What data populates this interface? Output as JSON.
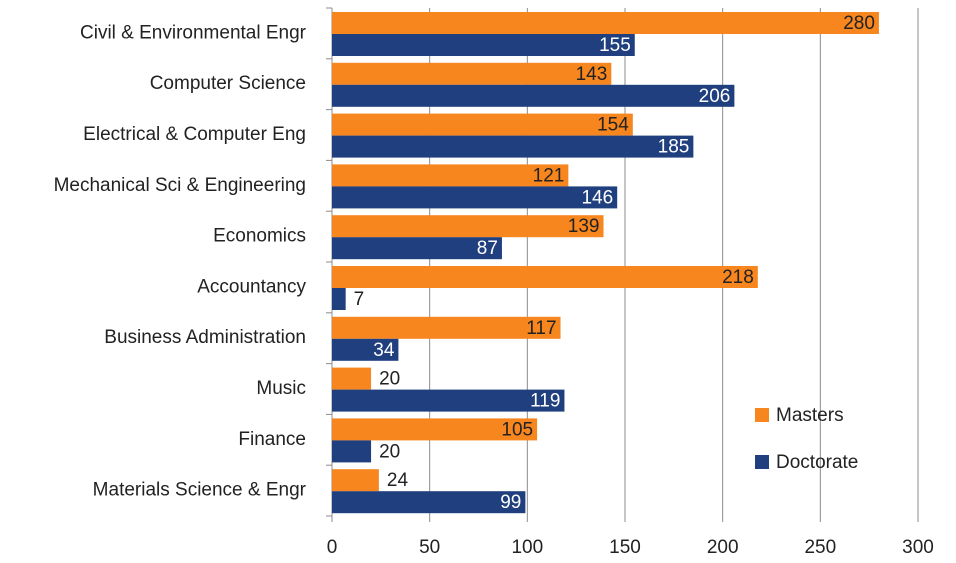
{
  "chart_data": {
    "type": "bar",
    "orientation": "horizontal",
    "categories": [
      "Civil & Environmental Engr",
      "Computer Science",
      "Electrical & Computer Eng",
      "Mechanical Sci & Engineering",
      "Economics",
      "Accountancy",
      "Business Administration",
      "Music",
      "Finance",
      "Materials Science & Engr"
    ],
    "series": [
      {
        "name": "Masters",
        "color": "#f7861f",
        "values": [
          280,
          143,
          154,
          121,
          139,
          218,
          117,
          20,
          105,
          24
        ]
      },
      {
        "name": "Doctorate",
        "color": "#203f7f",
        "values": [
          155,
          206,
          185,
          146,
          87,
          7,
          34,
          119,
          20,
          99
        ]
      }
    ],
    "xlim": [
      0,
      300
    ],
    "xticks": [
      0,
      50,
      100,
      150,
      200,
      250,
      300
    ],
    "grid": true,
    "legend": "lower right"
  }
}
